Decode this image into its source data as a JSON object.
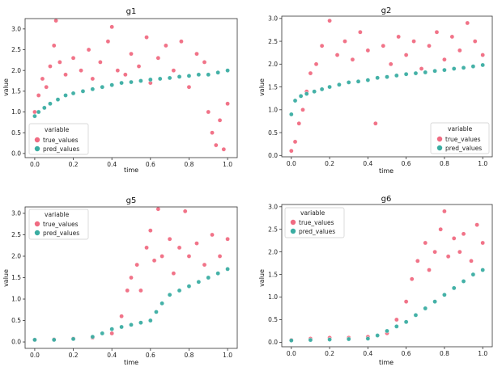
{
  "chart_data": [
    {
      "id": "g1",
      "type": "scatter",
      "title": "g1",
      "xlabel": "time",
      "ylabel": "value",
      "xlim": [
        -0.05,
        1.05
      ],
      "ylim": [
        -0.1,
        3.25
      ],
      "xticks": [
        0.0,
        0.2,
        0.4,
        0.6,
        0.8,
        1.0
      ],
      "xtick_labels": [
        "0.0",
        "0.2",
        "0.4",
        "0.6",
        "0.8",
        "1.0"
      ],
      "yticks": [
        0.0,
        0.5,
        1.0,
        1.5,
        2.0,
        2.5,
        3.0
      ],
      "ytick_labels": [
        "0.0",
        "0.5",
        "1.0",
        "1.5",
        "2.0",
        "2.5",
        "3.0"
      ],
      "legend": {
        "title": "variable",
        "position": "lower-left"
      },
      "series": [
        {
          "name": "true_values",
          "color": "#f06b82",
          "points": [
            [
              0.0,
              1.0
            ],
            [
              0.02,
              1.4
            ],
            [
              0.04,
              1.8
            ],
            [
              0.06,
              1.6
            ],
            [
              0.08,
              2.1
            ],
            [
              0.1,
              2.6
            ],
            [
              0.11,
              3.2
            ],
            [
              0.13,
              2.2
            ],
            [
              0.16,
              1.9
            ],
            [
              0.2,
              2.3
            ],
            [
              0.24,
              2.0
            ],
            [
              0.28,
              2.5
            ],
            [
              0.3,
              1.8
            ],
            [
              0.34,
              2.2
            ],
            [
              0.38,
              2.7
            ],
            [
              0.4,
              3.05
            ],
            [
              0.43,
              2.0
            ],
            [
              0.47,
              1.9
            ],
            [
              0.5,
              2.4
            ],
            [
              0.54,
              2.1
            ],
            [
              0.58,
              2.8
            ],
            [
              0.6,
              1.7
            ],
            [
              0.64,
              2.3
            ],
            [
              0.68,
              2.6
            ],
            [
              0.72,
              2.0
            ],
            [
              0.76,
              2.7
            ],
            [
              0.8,
              1.6
            ],
            [
              0.84,
              2.4
            ],
            [
              0.88,
              2.2
            ],
            [
              0.9,
              1.0
            ],
            [
              0.92,
              0.5
            ],
            [
              0.94,
              0.2
            ],
            [
              0.96,
              0.8
            ],
            [
              0.98,
              0.1
            ],
            [
              1.0,
              1.2
            ]
          ]
        },
        {
          "name": "pred_values",
          "color": "#3aada2",
          "points": [
            [
              0.0,
              0.9
            ],
            [
              0.02,
              1.0
            ],
            [
              0.05,
              1.1
            ],
            [
              0.08,
              1.2
            ],
            [
              0.12,
              1.3
            ],
            [
              0.16,
              1.4
            ],
            [
              0.2,
              1.45
            ],
            [
              0.25,
              1.5
            ],
            [
              0.3,
              1.55
            ],
            [
              0.35,
              1.6
            ],
            [
              0.4,
              1.65
            ],
            [
              0.45,
              1.7
            ],
            [
              0.5,
              1.72
            ],
            [
              0.55,
              1.75
            ],
            [
              0.6,
              1.78
            ],
            [
              0.65,
              1.8
            ],
            [
              0.7,
              1.82
            ],
            [
              0.75,
              1.85
            ],
            [
              0.8,
              1.87
            ],
            [
              0.85,
              1.9
            ],
            [
              0.9,
              1.9
            ],
            [
              0.95,
              1.95
            ],
            [
              1.0,
              2.0
            ]
          ]
        }
      ]
    },
    {
      "id": "g2",
      "type": "scatter",
      "title": "g2",
      "xlabel": "time",
      "ylabel": "value",
      "xlim": [
        -0.05,
        1.05
      ],
      "ylim": [
        -0.03,
        3.05
      ],
      "xticks": [
        0.0,
        0.2,
        0.4,
        0.6,
        0.8,
        1.0
      ],
      "xtick_labels": [
        "0.0",
        "0.2",
        "0.4",
        "0.6",
        "0.8",
        "1.0"
      ],
      "yticks": [
        0.0,
        0.5,
        1.0,
        1.5,
        2.0,
        2.5,
        3.0
      ],
      "ytick_labels": [
        "0.0",
        "0.5",
        "1.0",
        "1.5",
        "2.0",
        "2.5",
        "3.0"
      ],
      "legend": {
        "title": "variable",
        "position": "lower-right"
      },
      "series": [
        {
          "name": "true_values",
          "color": "#f06b82",
          "points": [
            [
              0.0,
              0.1
            ],
            [
              0.02,
              0.3
            ],
            [
              0.04,
              0.7
            ],
            [
              0.06,
              1.0
            ],
            [
              0.08,
              1.4
            ],
            [
              0.1,
              1.8
            ],
            [
              0.13,
              2.0
            ],
            [
              0.16,
              2.4
            ],
            [
              0.2,
              2.95
            ],
            [
              0.24,
              2.2
            ],
            [
              0.28,
              2.5
            ],
            [
              0.32,
              2.1
            ],
            [
              0.36,
              2.7
            ],
            [
              0.4,
              2.3
            ],
            [
              0.44,
              0.7
            ],
            [
              0.48,
              2.4
            ],
            [
              0.52,
              2.0
            ],
            [
              0.56,
              2.6
            ],
            [
              0.6,
              2.2
            ],
            [
              0.64,
              2.5
            ],
            [
              0.68,
              1.9
            ],
            [
              0.72,
              2.4
            ],
            [
              0.76,
              2.7
            ],
            [
              0.8,
              2.1
            ],
            [
              0.84,
              2.6
            ],
            [
              0.88,
              2.3
            ],
            [
              0.92,
              2.9
            ],
            [
              0.96,
              2.5
            ],
            [
              1.0,
              2.2
            ]
          ]
        },
        {
          "name": "pred_values",
          "color": "#3aada2",
          "points": [
            [
              0.0,
              0.9
            ],
            [
              0.02,
              1.2
            ],
            [
              0.05,
              1.3
            ],
            [
              0.08,
              1.35
            ],
            [
              0.12,
              1.4
            ],
            [
              0.16,
              1.45
            ],
            [
              0.2,
              1.5
            ],
            [
              0.25,
              1.55
            ],
            [
              0.3,
              1.6
            ],
            [
              0.35,
              1.62
            ],
            [
              0.4,
              1.65
            ],
            [
              0.45,
              1.7
            ],
            [
              0.5,
              1.72
            ],
            [
              0.55,
              1.75
            ],
            [
              0.6,
              1.78
            ],
            [
              0.65,
              1.8
            ],
            [
              0.7,
              1.82
            ],
            [
              0.75,
              1.85
            ],
            [
              0.8,
              1.87
            ],
            [
              0.85,
              1.9
            ],
            [
              0.9,
              1.92
            ],
            [
              0.95,
              1.95
            ],
            [
              1.0,
              1.98
            ]
          ]
        }
      ]
    },
    {
      "id": "g5",
      "type": "scatter",
      "title": "g5",
      "xlabel": "time",
      "ylabel": "value",
      "xlim": [
        -0.05,
        1.05
      ],
      "ylim": [
        -0.15,
        3.15
      ],
      "xticks": [
        0.0,
        0.2,
        0.4,
        0.6,
        0.8,
        1.0
      ],
      "xtick_labels": [
        "0.0",
        "0.2",
        "0.4",
        "0.6",
        "0.8",
        "1.0"
      ],
      "yticks": [
        0.0,
        0.5,
        1.0,
        1.5,
        2.0,
        2.5,
        3.0
      ],
      "ytick_labels": [
        "0.0",
        "0.5",
        "1.0",
        "1.5",
        "2.0",
        "2.5",
        "3.0"
      ],
      "legend": {
        "title": "variable",
        "position": "upper-left"
      },
      "series": [
        {
          "name": "true_values",
          "color": "#f06b82",
          "points": [
            [
              0.0,
              0.05
            ],
            [
              0.1,
              0.06
            ],
            [
              0.2,
              0.08
            ],
            [
              0.3,
              0.1
            ],
            [
              0.4,
              0.2
            ],
            [
              0.45,
              0.6
            ],
            [
              0.48,
              1.2
            ],
            [
              0.5,
              1.5
            ],
            [
              0.53,
              1.8
            ],
            [
              0.55,
              1.2
            ],
            [
              0.58,
              2.2
            ],
            [
              0.6,
              2.6
            ],
            [
              0.62,
              1.9
            ],
            [
              0.64,
              3.1
            ],
            [
              0.66,
              2.0
            ],
            [
              0.7,
              2.4
            ],
            [
              0.72,
              1.6
            ],
            [
              0.75,
              2.2
            ],
            [
              0.78,
              3.05
            ],
            [
              0.8,
              2.0
            ],
            [
              0.84,
              2.3
            ],
            [
              0.88,
              1.8
            ],
            [
              0.92,
              2.5
            ],
            [
              0.96,
              2.0
            ],
            [
              1.0,
              2.4
            ]
          ]
        },
        {
          "name": "pred_values",
          "color": "#3aada2",
          "points": [
            [
              0.0,
              0.05
            ],
            [
              0.1,
              0.05
            ],
            [
              0.2,
              0.07
            ],
            [
              0.3,
              0.12
            ],
            [
              0.35,
              0.2
            ],
            [
              0.4,
              0.3
            ],
            [
              0.45,
              0.35
            ],
            [
              0.5,
              0.4
            ],
            [
              0.55,
              0.45
            ],
            [
              0.6,
              0.5
            ],
            [
              0.63,
              0.7
            ],
            [
              0.66,
              0.9
            ],
            [
              0.7,
              1.1
            ],
            [
              0.75,
              1.2
            ],
            [
              0.8,
              1.3
            ],
            [
              0.85,
              1.4
            ],
            [
              0.9,
              1.5
            ],
            [
              0.95,
              1.6
            ],
            [
              1.0,
              1.7
            ]
          ]
        }
      ]
    },
    {
      "id": "g6",
      "type": "scatter",
      "title": "g6",
      "xlabel": "time",
      "ylabel": "value",
      "xlim": [
        -0.05,
        1.05
      ],
      "ylim": [
        -0.1,
        3.05
      ],
      "xticks": [
        0.0,
        0.2,
        0.4,
        0.6,
        0.8,
        1.0
      ],
      "xtick_labels": [
        "0.0",
        "0.2",
        "0.4",
        "0.6",
        "0.8",
        "1.0"
      ],
      "yticks": [
        0.0,
        0.5,
        1.0,
        1.5,
        2.0,
        2.5,
        3.0
      ],
      "ytick_labels": [
        "0.0",
        "0.5",
        "1.0",
        "1.5",
        "2.0",
        "2.5",
        "3.0"
      ],
      "legend": {
        "title": "variable",
        "position": "upper-left"
      },
      "series": [
        {
          "name": "true_values",
          "color": "#f06b82",
          "points": [
            [
              0.0,
              0.05
            ],
            [
              0.1,
              0.08
            ],
            [
              0.2,
              0.1
            ],
            [
              0.3,
              0.1
            ],
            [
              0.4,
              0.12
            ],
            [
              0.5,
              0.2
            ],
            [
              0.55,
              0.5
            ],
            [
              0.6,
              0.9
            ],
            [
              0.63,
              1.4
            ],
            [
              0.66,
              1.8
            ],
            [
              0.7,
              2.2
            ],
            [
              0.72,
              1.6
            ],
            [
              0.75,
              2.0
            ],
            [
              0.78,
              2.5
            ],
            [
              0.8,
              2.9
            ],
            [
              0.82,
              1.9
            ],
            [
              0.85,
              2.3
            ],
            [
              0.88,
              2.0
            ],
            [
              0.9,
              2.4
            ],
            [
              0.94,
              1.8
            ],
            [
              0.97,
              2.6
            ],
            [
              1.0,
              2.2
            ]
          ]
        },
        {
          "name": "pred_values",
          "color": "#3aada2",
          "points": [
            [
              0.0,
              0.04
            ],
            [
              0.1,
              0.05
            ],
            [
              0.2,
              0.06
            ],
            [
              0.3,
              0.07
            ],
            [
              0.4,
              0.08
            ],
            [
              0.45,
              0.15
            ],
            [
              0.5,
              0.25
            ],
            [
              0.55,
              0.35
            ],
            [
              0.6,
              0.45
            ],
            [
              0.65,
              0.6
            ],
            [
              0.7,
              0.75
            ],
            [
              0.75,
              0.9
            ],
            [
              0.8,
              1.05
            ],
            [
              0.85,
              1.2
            ],
            [
              0.9,
              1.35
            ],
            [
              0.95,
              1.5
            ],
            [
              1.0,
              1.6
            ]
          ]
        }
      ]
    }
  ]
}
